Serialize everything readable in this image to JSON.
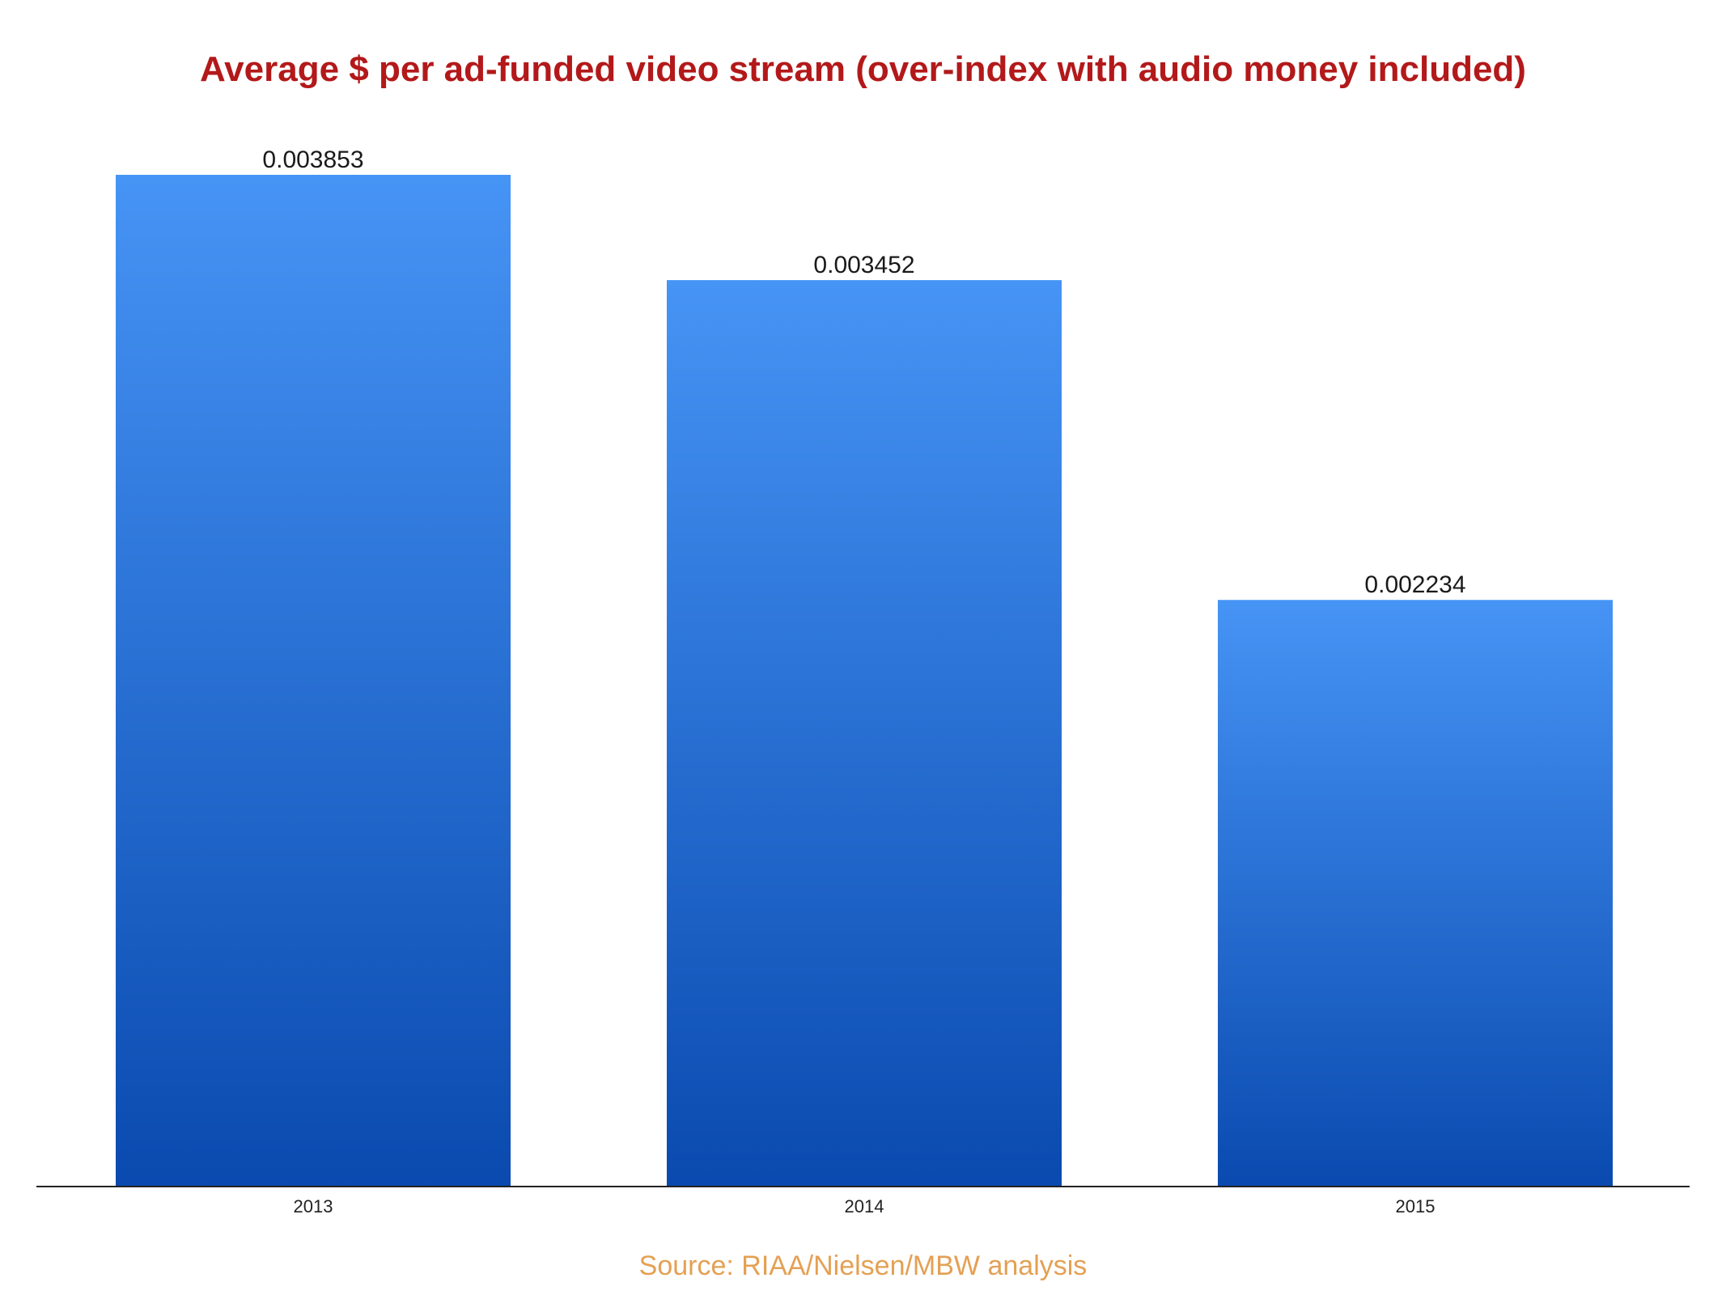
{
  "chart_data": {
    "type": "bar",
    "title": "Average $ per ad-funded video stream (over-index with audio money included)",
    "categories": [
      "2013",
      "2014",
      "2015"
    ],
    "values": [
      0.003853,
      0.003452,
      0.002234
    ],
    "value_labels": [
      "0.003853",
      "0.003452",
      "0.002234"
    ],
    "ylim": [
      0,
      0.003853
    ],
    "grid": false,
    "legend": "none",
    "source": "Source: RIAA/Nielsen/MBW analysis"
  },
  "colors": {
    "title": "#b3191a",
    "bar_top": "#4694f5",
    "bar_bottom": "#0a4aaf",
    "axis": "#222222",
    "source": "#e4a053"
  }
}
